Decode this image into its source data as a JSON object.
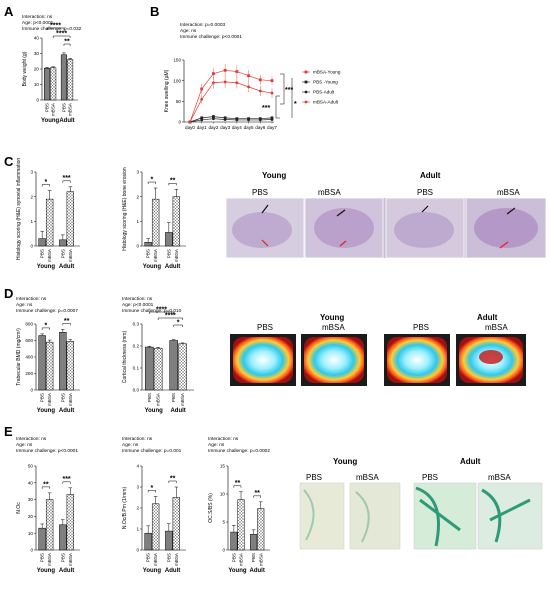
{
  "panels": {
    "A": {
      "label": "A"
    },
    "B": {
      "label": "B"
    },
    "C": {
      "label": "C",
      "image": {
        "group_young": "Young",
        "group_adult": "Adult",
        "labels": [
          "PBS",
          "mBSA",
          "PBS",
          "mBSA"
        ]
      }
    },
    "D": {
      "label": "D",
      "image": {
        "group_young": "Young",
        "group_adult": "Adult",
        "labels": [
          "PBS",
          "mBSA",
          "PBS",
          "mBSA"
        ]
      }
    },
    "E": {
      "label": "E",
      "image": {
        "group_young": "Young",
        "group_adult": "Adult",
        "labels": [
          "PBS",
          "mBSA",
          "PBS",
          "mBSA"
        ]
      }
    }
  },
  "chart_data": [
    {
      "id": "A",
      "type": "bar",
      "ylabel": "Body weight (g)",
      "ylim": [
        0,
        40
      ],
      "yticks": [
        "0",
        "10",
        "20",
        "30",
        "40"
      ],
      "categories": [
        "PBS",
        "mBSA",
        "PBS",
        "mBSA"
      ],
      "groups": [
        "Young",
        "Adult"
      ],
      "values": [
        20.5,
        20.8,
        29.2,
        26.0
      ],
      "errors": [
        0.6,
        0.6,
        1.2,
        0.9
      ],
      "stats": [
        "Interaction: ns",
        "Age: p<0.0001",
        "Immune challenge: p=0.032"
      ],
      "sig": [
        "****",
        "****",
        "**"
      ]
    },
    {
      "id": "B",
      "type": "line",
      "ylabel": "Knee swelling (µM)",
      "ylim": [
        0,
        150
      ],
      "yticks": [
        "0",
        "50",
        "100",
        "150"
      ],
      "x": [
        "day0",
        "day1",
        "day2",
        "day3",
        "day4",
        "day5",
        "day6",
        "day7"
      ],
      "stats": [
        "Interaction: p=0.0003",
        "Age: ns",
        "Immune challenge: p<0.0001"
      ],
      "series": [
        {
          "name": "mBSA-Young",
          "color": "#e03c31",
          "marker": "square",
          "values": [
            0,
            80,
            117,
            125,
            122,
            112,
            102,
            100
          ],
          "errors": [
            3,
            12,
            14,
            15,
            15,
            14,
            12,
            10
          ]
        },
        {
          "name": "PBS -Young",
          "color": "#222222",
          "marker": "square",
          "values": [
            0,
            10,
            13,
            10,
            8,
            8,
            8,
            10
          ],
          "errors": [
            2,
            4,
            5,
            4,
            3,
            3,
            3,
            4
          ]
        },
        {
          "name": "PBS-Adult",
          "color": "#222222",
          "marker": "dot",
          "values": [
            0,
            5,
            8,
            6,
            5,
            5,
            5,
            6
          ],
          "errors": [
            2,
            3,
            3,
            3,
            3,
            3,
            3,
            3
          ]
        },
        {
          "name": "mBSA-Adult",
          "color": "#e03c31",
          "marker": "dot",
          "values": [
            0,
            55,
            95,
            97,
            95,
            85,
            75,
            70
          ],
          "errors": [
            3,
            12,
            14,
            15,
            14,
            13,
            12,
            12
          ]
        }
      ],
      "sig": [
        "***",
        "***",
        "*"
      ]
    },
    {
      "id": "C1",
      "type": "bar",
      "ylabel": "Histology scoring (H&E) synovial inflammation",
      "ylim": [
        0,
        3
      ],
      "yticks": [
        "0",
        "1",
        "2",
        "3"
      ],
      "categories": [
        "PBS",
        "mBSA",
        "PBS",
        "mBSA"
      ],
      "groups": [
        "Young",
        "Adult"
      ],
      "values": [
        0.3,
        1.9,
        0.25,
        2.2
      ],
      "errors": [
        0.3,
        0.35,
        0.2,
        0.2
      ],
      "sig": [
        "*",
        "***"
      ]
    },
    {
      "id": "C2",
      "type": "bar",
      "ylabel": "Histology scoring (H&E) bone erosion",
      "ylim": [
        0,
        3
      ],
      "yticks": [
        "0",
        "1",
        "2",
        "3"
      ],
      "categories": [
        "PBS",
        "mBSA",
        "PBS",
        "mBSA"
      ],
      "groups": [
        "Young",
        "Adult"
      ],
      "values": [
        0.15,
        1.9,
        0.55,
        2.0
      ],
      "errors": [
        0.15,
        0.45,
        0.4,
        0.3
      ],
      "sig": [
        "*",
        "**"
      ]
    },
    {
      "id": "D1",
      "type": "bar",
      "ylabel": "Trabecular BMD (mg/cm³)",
      "ylim": [
        0,
        800
      ],
      "yticks": [
        "0",
        "200",
        "400",
        "600",
        "800"
      ],
      "categories": [
        "PBS",
        "mBSA",
        "PBS",
        "mBSA"
      ],
      "groups": [
        "Young",
        "Adult"
      ],
      "values": [
        660,
        580,
        700,
        590
      ],
      "errors": [
        20,
        25,
        35,
        20
      ],
      "stats": [
        "Interaction: ns",
        "Age: ns",
        "Immune challenge: p=0.0007"
      ],
      "sig": [
        "*",
        "**"
      ]
    },
    {
      "id": "D2",
      "type": "bar",
      "ylabel": "Cortical thickness (mm)",
      "ylim": [
        0,
        0.3
      ],
      "yticks": [
        "0.0",
        "0.1",
        "0.2",
        "0.3"
      ],
      "categories": [
        "PBS",
        "mBSA",
        "PBS",
        "mBSA"
      ],
      "groups": [
        "Young",
        "Adult"
      ],
      "values": [
        0.195,
        0.19,
        0.225,
        0.21
      ],
      "errors": [
        0.004,
        0.004,
        0.004,
        0.004
      ],
      "stats": [
        "Interaction: ns",
        "Age: p<0.0001",
        "Immune challenge: p=0.010"
      ],
      "sig": [
        "****",
        "****",
        "*"
      ]
    },
    {
      "id": "E1",
      "type": "bar",
      "ylabel": "N.Oc",
      "ylim": [
        0,
        50
      ],
      "yticks": [
        "0",
        "10",
        "20",
        "30",
        "40",
        "50"
      ],
      "categories": [
        "PBS",
        "mBSA",
        "PBS",
        "mBSA"
      ],
      "groups": [
        "Young",
        "Adult"
      ],
      "values": [
        13,
        30,
        15,
        33
      ],
      "errors": [
        2.5,
        4,
        3,
        4
      ],
      "stats": [
        "Interaction: ns",
        "Age: ns",
        "Immune challenge: p<0.0001"
      ],
      "sig": [
        "**",
        "***"
      ]
    },
    {
      "id": "E2",
      "type": "bar",
      "ylabel": "N.Oc/B.Pm (1/mm)",
      "ylim": [
        0,
        4
      ],
      "yticks": [
        "0",
        "1",
        "2",
        "3",
        "4"
      ],
      "categories": [
        "PBS",
        "mBSA",
        "PBS",
        "mBSA"
      ],
      "groups": [
        "Young",
        "Adult"
      ],
      "values": [
        0.8,
        2.2,
        0.9,
        2.5
      ],
      "errors": [
        0.35,
        0.35,
        0.35,
        0.5
      ],
      "stats": [
        "Interaction: ns",
        "Age: ns",
        "Immune challenge: p=0.001"
      ],
      "sig": [
        "*",
        "**"
      ]
    },
    {
      "id": "E3",
      "type": "bar",
      "ylabel": "OC.S/BS (%)",
      "ylim": [
        0,
        15
      ],
      "yticks": [
        "0",
        "5",
        "10",
        "15"
      ],
      "categories": [
        "PBS",
        "mBSA",
        "PBS",
        "mBSA"
      ],
      "groups": [
        "Young",
        "Adult"
      ],
      "values": [
        3.2,
        9.0,
        2.8,
        7.4
      ],
      "errors": [
        1.2,
        1.4,
        0.8,
        1.2
      ],
      "stats": [
        "Interaction: ns",
        "Age: ns",
        "Immune challenge: p=0.0002"
      ],
      "sig": [
        "**",
        "**"
      ]
    }
  ]
}
